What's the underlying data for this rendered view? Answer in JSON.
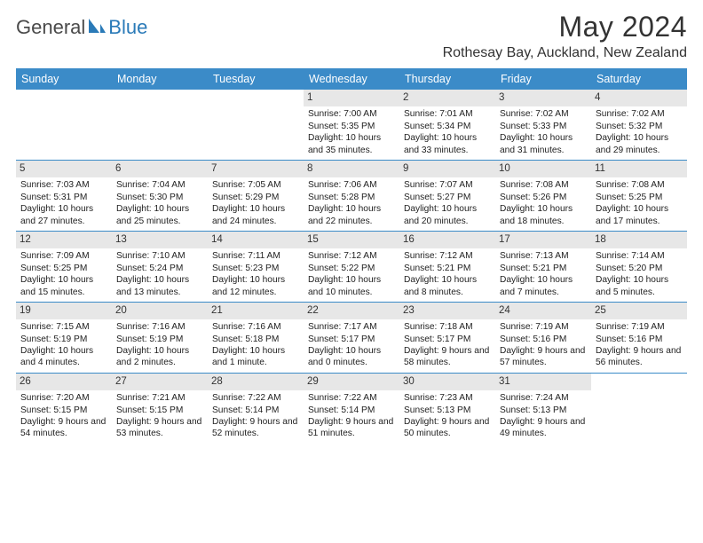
{
  "logo": {
    "text1": "General",
    "text2": "Blue"
  },
  "title": "May 2024",
  "location": "Rothesay Bay, Auckland, New Zealand",
  "colors": {
    "header_bg": "#3b8bc8",
    "header_text": "#ffffff",
    "daynum_bg": "#e7e7e7",
    "border": "#3b8bc8",
    "logo_gray": "#4a4a4a",
    "logo_blue": "#2a7ab8",
    "title_color": "#333333"
  },
  "weekdays": [
    "Sunday",
    "Monday",
    "Tuesday",
    "Wednesday",
    "Thursday",
    "Friday",
    "Saturday"
  ],
  "weeks": [
    [
      {
        "empty": true
      },
      {
        "empty": true
      },
      {
        "empty": true
      },
      {
        "num": "1",
        "sunrise": "Sunrise: 7:00 AM",
        "sunset": "Sunset: 5:35 PM",
        "daylight": "Daylight: 10 hours and 35 minutes."
      },
      {
        "num": "2",
        "sunrise": "Sunrise: 7:01 AM",
        "sunset": "Sunset: 5:34 PM",
        "daylight": "Daylight: 10 hours and 33 minutes."
      },
      {
        "num": "3",
        "sunrise": "Sunrise: 7:02 AM",
        "sunset": "Sunset: 5:33 PM",
        "daylight": "Daylight: 10 hours and 31 minutes."
      },
      {
        "num": "4",
        "sunrise": "Sunrise: 7:02 AM",
        "sunset": "Sunset: 5:32 PM",
        "daylight": "Daylight: 10 hours and 29 minutes."
      }
    ],
    [
      {
        "num": "5",
        "sunrise": "Sunrise: 7:03 AM",
        "sunset": "Sunset: 5:31 PM",
        "daylight": "Daylight: 10 hours and 27 minutes."
      },
      {
        "num": "6",
        "sunrise": "Sunrise: 7:04 AM",
        "sunset": "Sunset: 5:30 PM",
        "daylight": "Daylight: 10 hours and 25 minutes."
      },
      {
        "num": "7",
        "sunrise": "Sunrise: 7:05 AM",
        "sunset": "Sunset: 5:29 PM",
        "daylight": "Daylight: 10 hours and 24 minutes."
      },
      {
        "num": "8",
        "sunrise": "Sunrise: 7:06 AM",
        "sunset": "Sunset: 5:28 PM",
        "daylight": "Daylight: 10 hours and 22 minutes."
      },
      {
        "num": "9",
        "sunrise": "Sunrise: 7:07 AM",
        "sunset": "Sunset: 5:27 PM",
        "daylight": "Daylight: 10 hours and 20 minutes."
      },
      {
        "num": "10",
        "sunrise": "Sunrise: 7:08 AM",
        "sunset": "Sunset: 5:26 PM",
        "daylight": "Daylight: 10 hours and 18 minutes."
      },
      {
        "num": "11",
        "sunrise": "Sunrise: 7:08 AM",
        "sunset": "Sunset: 5:25 PM",
        "daylight": "Daylight: 10 hours and 17 minutes."
      }
    ],
    [
      {
        "num": "12",
        "sunrise": "Sunrise: 7:09 AM",
        "sunset": "Sunset: 5:25 PM",
        "daylight": "Daylight: 10 hours and 15 minutes."
      },
      {
        "num": "13",
        "sunrise": "Sunrise: 7:10 AM",
        "sunset": "Sunset: 5:24 PM",
        "daylight": "Daylight: 10 hours and 13 minutes."
      },
      {
        "num": "14",
        "sunrise": "Sunrise: 7:11 AM",
        "sunset": "Sunset: 5:23 PM",
        "daylight": "Daylight: 10 hours and 12 minutes."
      },
      {
        "num": "15",
        "sunrise": "Sunrise: 7:12 AM",
        "sunset": "Sunset: 5:22 PM",
        "daylight": "Daylight: 10 hours and 10 minutes."
      },
      {
        "num": "16",
        "sunrise": "Sunrise: 7:12 AM",
        "sunset": "Sunset: 5:21 PM",
        "daylight": "Daylight: 10 hours and 8 minutes."
      },
      {
        "num": "17",
        "sunrise": "Sunrise: 7:13 AM",
        "sunset": "Sunset: 5:21 PM",
        "daylight": "Daylight: 10 hours and 7 minutes."
      },
      {
        "num": "18",
        "sunrise": "Sunrise: 7:14 AM",
        "sunset": "Sunset: 5:20 PM",
        "daylight": "Daylight: 10 hours and 5 minutes."
      }
    ],
    [
      {
        "num": "19",
        "sunrise": "Sunrise: 7:15 AM",
        "sunset": "Sunset: 5:19 PM",
        "daylight": "Daylight: 10 hours and 4 minutes."
      },
      {
        "num": "20",
        "sunrise": "Sunrise: 7:16 AM",
        "sunset": "Sunset: 5:19 PM",
        "daylight": "Daylight: 10 hours and 2 minutes."
      },
      {
        "num": "21",
        "sunrise": "Sunrise: 7:16 AM",
        "sunset": "Sunset: 5:18 PM",
        "daylight": "Daylight: 10 hours and 1 minute."
      },
      {
        "num": "22",
        "sunrise": "Sunrise: 7:17 AM",
        "sunset": "Sunset: 5:17 PM",
        "daylight": "Daylight: 10 hours and 0 minutes."
      },
      {
        "num": "23",
        "sunrise": "Sunrise: 7:18 AM",
        "sunset": "Sunset: 5:17 PM",
        "daylight": "Daylight: 9 hours and 58 minutes."
      },
      {
        "num": "24",
        "sunrise": "Sunrise: 7:19 AM",
        "sunset": "Sunset: 5:16 PM",
        "daylight": "Daylight: 9 hours and 57 minutes."
      },
      {
        "num": "25",
        "sunrise": "Sunrise: 7:19 AM",
        "sunset": "Sunset: 5:16 PM",
        "daylight": "Daylight: 9 hours and 56 minutes."
      }
    ],
    [
      {
        "num": "26",
        "sunrise": "Sunrise: 7:20 AM",
        "sunset": "Sunset: 5:15 PM",
        "daylight": "Daylight: 9 hours and 54 minutes."
      },
      {
        "num": "27",
        "sunrise": "Sunrise: 7:21 AM",
        "sunset": "Sunset: 5:15 PM",
        "daylight": "Daylight: 9 hours and 53 minutes."
      },
      {
        "num": "28",
        "sunrise": "Sunrise: 7:22 AM",
        "sunset": "Sunset: 5:14 PM",
        "daylight": "Daylight: 9 hours and 52 minutes."
      },
      {
        "num": "29",
        "sunrise": "Sunrise: 7:22 AM",
        "sunset": "Sunset: 5:14 PM",
        "daylight": "Daylight: 9 hours and 51 minutes."
      },
      {
        "num": "30",
        "sunrise": "Sunrise: 7:23 AM",
        "sunset": "Sunset: 5:13 PM",
        "daylight": "Daylight: 9 hours and 50 minutes."
      },
      {
        "num": "31",
        "sunrise": "Sunrise: 7:24 AM",
        "sunset": "Sunset: 5:13 PM",
        "daylight": "Daylight: 9 hours and 49 minutes."
      },
      {
        "empty": true
      }
    ]
  ]
}
